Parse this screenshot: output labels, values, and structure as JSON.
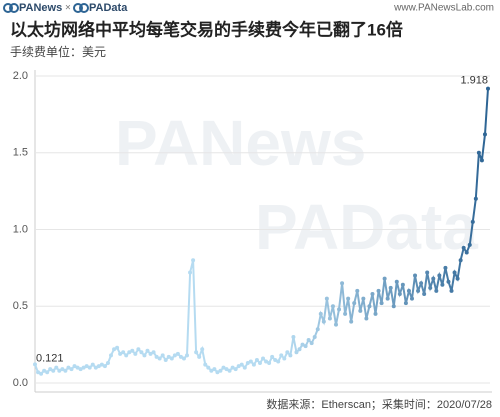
{
  "chart_data": {
    "type": "line",
    "brand_left": "PANews",
    "brand_sep": "×",
    "brand_right": "PAData",
    "website": "www.PANewsLab.com",
    "title": "以太坊网络中平均每笔交易的手续费今年已翻了16倍",
    "subtitle": "手续费单位：美元",
    "source": "数据来源：Etherscan；采集时间：2020/07/28",
    "gradient": [
      "#b5dbf1",
      "#2d6494"
    ],
    "values": [
      0.121,
      0.07,
      0.06,
      0.08,
      0.07,
      0.09,
      0.08,
      0.1,
      0.08,
      0.09,
      0.08,
      0.1,
      0.09,
      0.11,
      0.1,
      0.09,
      0.1,
      0.11,
      0.1,
      0.12,
      0.1,
      0.11,
      0.12,
      0.11,
      0.13,
      0.18,
      0.22,
      0.23,
      0.19,
      0.2,
      0.18,
      0.2,
      0.21,
      0.19,
      0.22,
      0.2,
      0.18,
      0.21,
      0.19,
      0.2,
      0.17,
      0.16,
      0.18,
      0.15,
      0.17,
      0.16,
      0.18,
      0.19,
      0.17,
      0.16,
      0.18,
      0.72,
      0.8,
      0.2,
      0.17,
      0.22,
      0.12,
      0.1,
      0.08,
      0.09,
      0.07,
      0.08,
      0.1,
      0.09,
      0.08,
      0.1,
      0.09,
      0.11,
      0.12,
      0.1,
      0.13,
      0.14,
      0.12,
      0.15,
      0.13,
      0.16,
      0.14,
      0.13,
      0.17,
      0.15,
      0.14,
      0.18,
      0.16,
      0.2,
      0.18,
      0.3,
      0.2,
      0.22,
      0.25,
      0.24,
      0.28,
      0.26,
      0.3,
      0.35,
      0.45,
      0.4,
      0.55,
      0.42,
      0.5,
      0.38,
      0.48,
      0.65,
      0.45,
      0.55,
      0.4,
      0.52,
      0.6,
      0.47,
      0.55,
      0.42,
      0.5,
      0.58,
      0.45,
      0.6,
      0.52,
      0.68,
      0.55,
      0.62,
      0.5,
      0.66,
      0.58,
      0.64,
      0.52,
      0.6,
      0.55,
      0.7,
      0.6,
      0.65,
      0.58,
      0.72,
      0.62,
      0.68,
      0.6,
      0.7,
      0.64,
      0.75,
      0.66,
      0.6,
      0.72,
      0.68,
      0.8,
      0.88,
      0.85,
      0.9,
      1.05,
      1.2,
      1.5,
      1.45,
      1.62,
      1.918
    ],
    "ylim": [
      0,
      2
    ],
    "yticks": [
      {
        "value": 0,
        "label": "0.0"
      },
      0.5,
      {
        "value": 1,
        "label": "1.0"
      },
      1.5,
      {
        "value": 2,
        "label": "2.0"
      }
    ],
    "grid": true
  }
}
